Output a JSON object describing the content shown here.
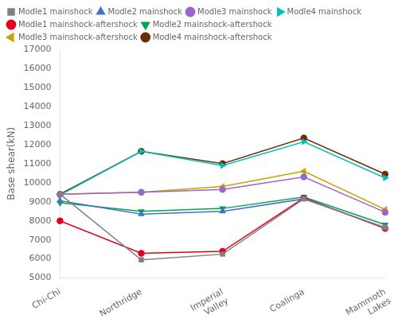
{
  "chart_data": {
    "type": "line",
    "categories": [
      "Chi-Chi",
      "Northridge",
      "Imperial\nValley",
      "Coalinga",
      "Mammoth\nLakes"
    ],
    "series": [
      {
        "name": "Modle1 mainshock",
        "color": "#808080",
        "marker": "square",
        "values": [
          9400,
          5950,
          6250,
          9150,
          7650
        ]
      },
      {
        "name": "Modle2 mainshock",
        "color": "#4472c4",
        "marker": "triangle-up",
        "values": [
          9050,
          8350,
          8500,
          9150,
          7650
        ]
      },
      {
        "name": "Modle3 mainshock",
        "color": "#9966cc",
        "marker": "circle",
        "values": [
          9400,
          9500,
          9650,
          10300,
          8450
        ]
      },
      {
        "name": "Modle4 mainshock",
        "color": "#00bfbf",
        "marker": "triangle-right",
        "values": [
          9350,
          11650,
          10900,
          12150,
          10250
        ]
      },
      {
        "name": "Modle1 mainshock-aftershock",
        "color": "#e8001a",
        "marker": "circle",
        "values": [
          8000,
          6300,
          6400,
          9200,
          7600
        ]
      },
      {
        "name": "Modle2 mainshock-aftershock",
        "color": "#00a550",
        "marker": "triangle-down",
        "values": [
          8950,
          8500,
          8650,
          9250,
          7800
        ]
      },
      {
        "name": "Modle3 mainshock-aftershock",
        "color": "#c8a000",
        "marker": "triangle-left",
        "values": [
          9400,
          9500,
          9800,
          10600,
          8600
        ]
      },
      {
        "name": "Modle4 mainshock-aftershock",
        "color": "#6b2f00",
        "marker": "circle",
        "values": [
          9400,
          11650,
          11000,
          12350,
          10450
        ]
      }
    ],
    "ylabel": "Base shear(kN)",
    "ylim": [
      5000,
      17000
    ],
    "yticks": [
      5000,
      6000,
      7000,
      8000,
      9000,
      10000,
      11000,
      12000,
      13000,
      14000,
      15000,
      16000,
      17000
    ],
    "grid": false,
    "legend": "upper left"
  }
}
